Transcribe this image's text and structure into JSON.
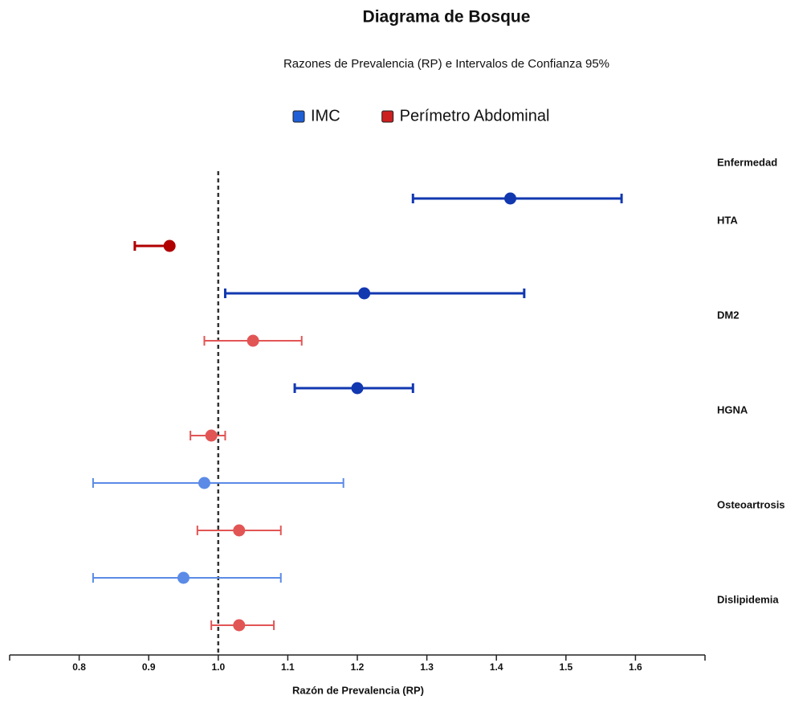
{
  "chart_data": {
    "type": "forest",
    "title": "Diagrama de Bosque",
    "subtitle": "Razones de Prevalencia (RP) e Intervalos de Confianza 95%",
    "x_label": "Razón de Prevalencia (RP)",
    "category_header": "Enfermedad",
    "categories": [
      "HTA",
      "DM2",
      "HGNA",
      "Osteoartrosis",
      "Dislipidemia"
    ],
    "series": [
      {
        "name": "IMC",
        "color": "#1f5fd6",
        "point_colors": [
          "#1238b0",
          "#1238b0",
          "#1238b0",
          "#5b8be6",
          "#5b8be6"
        ],
        "values": [
          1.42,
          1.21,
          1.2,
          0.98,
          0.95
        ],
        "lower": [
          1.28,
          1.01,
          1.11,
          0.82,
          0.82
        ],
        "upper": [
          1.58,
          1.44,
          1.28,
          1.18,
          1.09
        ]
      },
      {
        "name": "Perímetro Abdominal",
        "color": "#cc1f1f",
        "point_colors": [
          "#b00000",
          "#e25555",
          "#e25555",
          "#e25555",
          "#e25555"
        ],
        "values": [
          0.93,
          1.05,
          0.99,
          1.03,
          1.03
        ],
        "lower": [
          0.88,
          0.98,
          0.96,
          0.97,
          0.99
        ],
        "upper": [
          0.93,
          1.12,
          1.01,
          1.09,
          1.08
        ]
      }
    ],
    "reference_line": 1.0,
    "xlim": [
      0.7,
      1.7
    ],
    "xticks": [
      0.8,
      0.9,
      {
        "value": 1.0,
        "label": "1.0"
      },
      1.1,
      1.2,
      1.3,
      1.4,
      1.5,
      1.6
    ]
  }
}
